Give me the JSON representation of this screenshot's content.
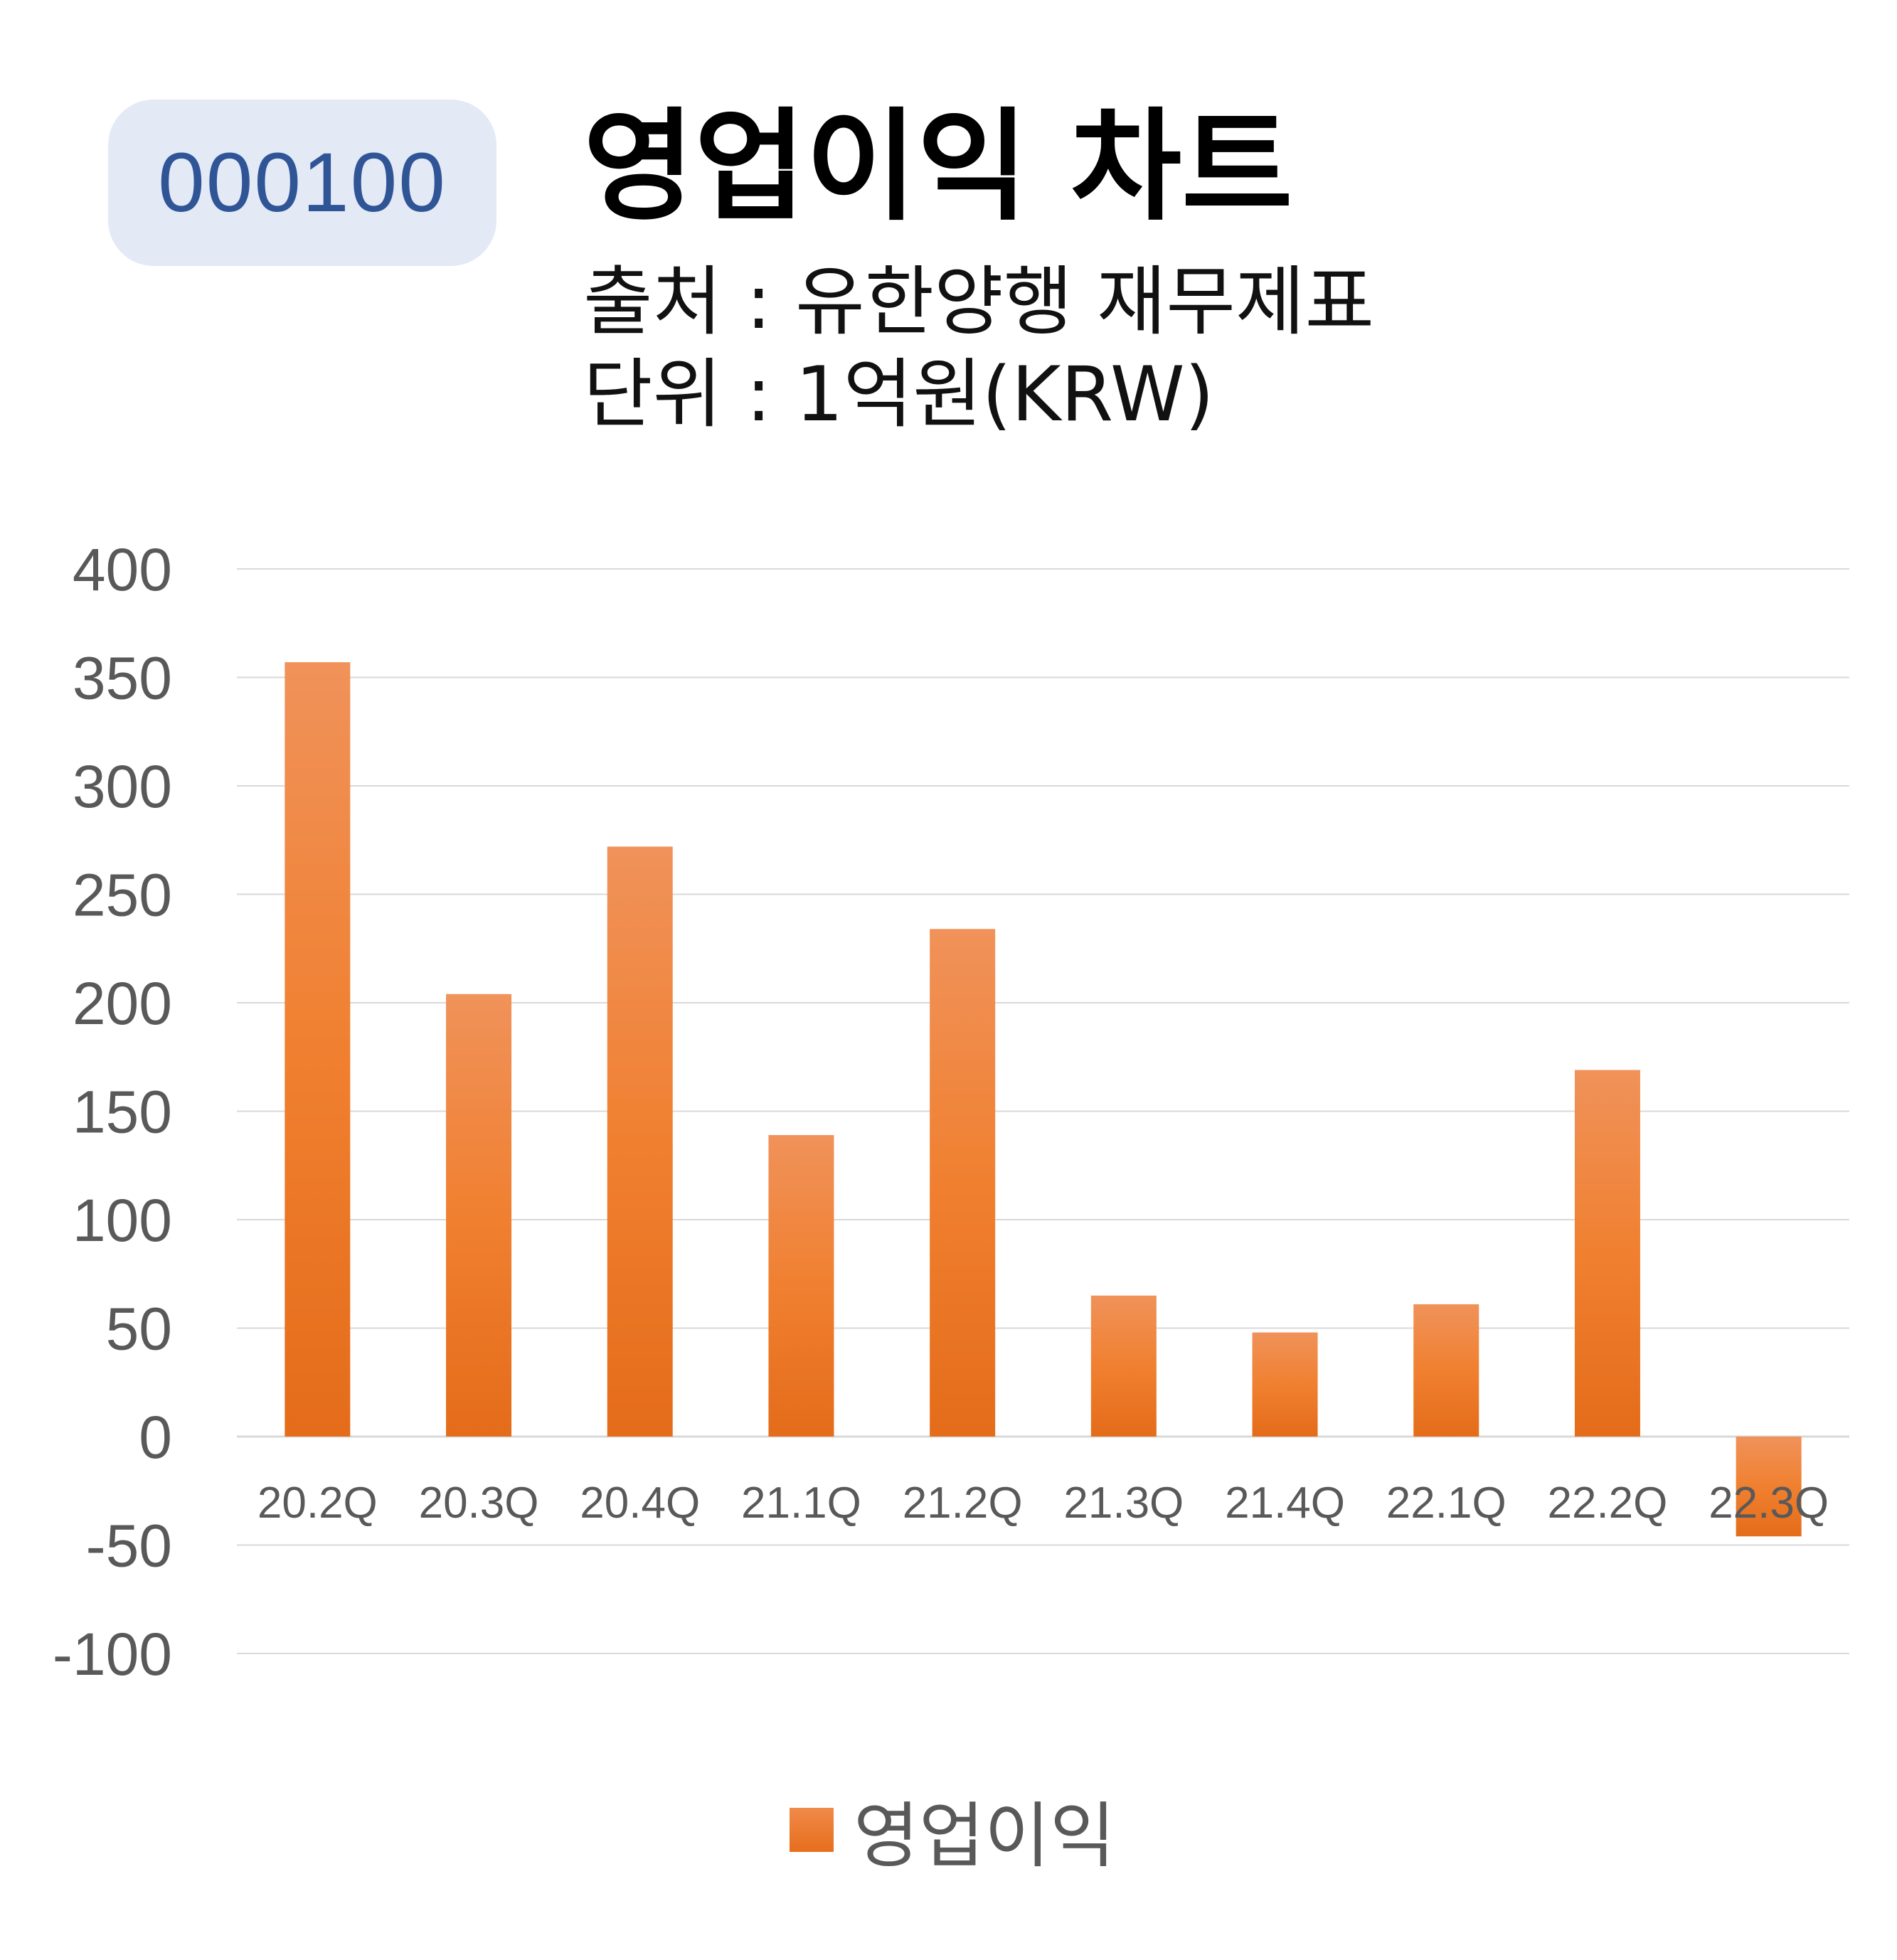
{
  "header": {
    "ticker": "000100",
    "title": "영업이익 차트",
    "source": "출처 : 유한양행 재무제표",
    "unit": "단위 : 1억원(KRW)"
  },
  "colors": {
    "bar_top": "#f0925a",
    "bar_mid": "#f08030",
    "bar_bottom": "#e46c1a",
    "grid": "#d9d9d9",
    "tick_text": "#595959",
    "badge_bg": "#e3e9f5",
    "badge_text": "#2f5597"
  },
  "chart_data": {
    "type": "bar",
    "title": "",
    "xlabel": "",
    "ylabel": "",
    "categories": [
      "20.2Q",
      "20.3Q",
      "20.4Q",
      "21.1Q",
      "21.2Q",
      "21.3Q",
      "21.4Q",
      "22.1Q",
      "22.2Q",
      "22.3Q"
    ],
    "series": [
      {
        "name": "영업이익",
        "values": [
          357,
          204,
          272,
          139,
          234,
          65,
          48,
          61,
          169,
          -46
        ]
      }
    ],
    "ylim": [
      -100,
      400
    ],
    "yticks": [
      400,
      350,
      300,
      250,
      200,
      150,
      100,
      50,
      0,
      -50,
      -100
    ],
    "grid": true,
    "legend": "bottom"
  }
}
